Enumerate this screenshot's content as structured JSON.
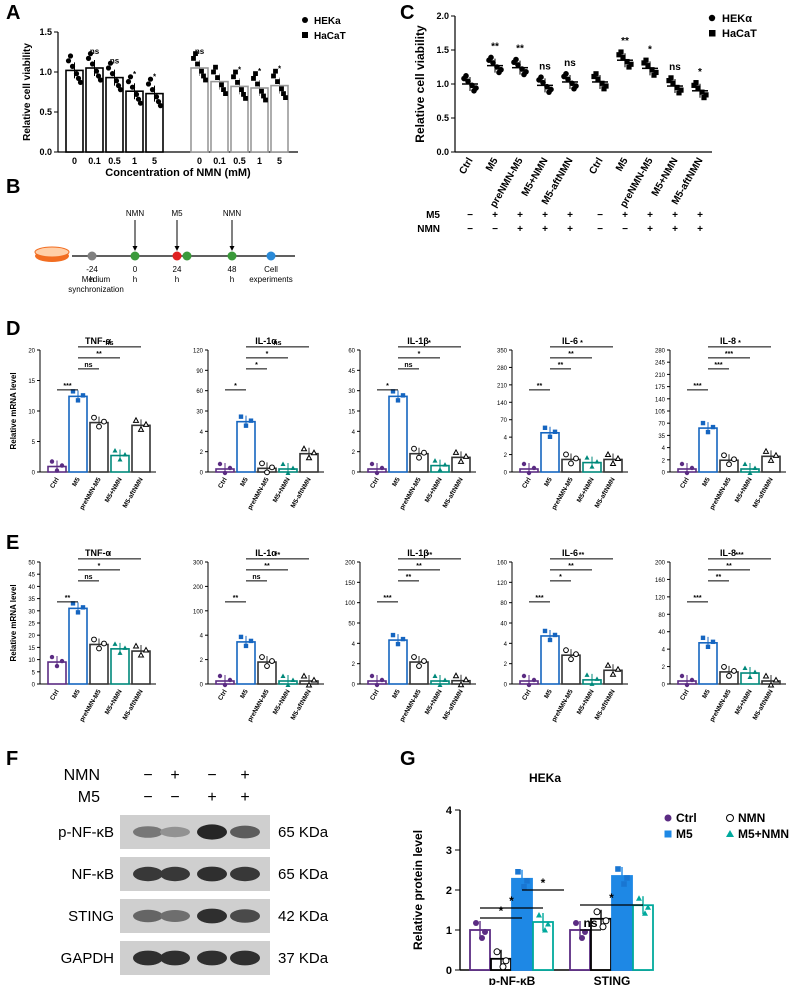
{
  "panels": {
    "A": "A",
    "B": "B",
    "C": "C",
    "D": "D",
    "E": "E",
    "F": "F",
    "G": "G"
  },
  "chart_data": [
    {
      "id": "A",
      "type": "bar",
      "ylabel": "Relative cell viability",
      "xlabel": "Concentration of NMN (mM)",
      "ylim": [
        0,
        1.5
      ],
      "yticks": [
        "0.0",
        "0.5",
        "1.0",
        "1.5"
      ],
      "legend": [
        "HEKa",
        "HaCaT"
      ],
      "groups": [
        {
          "name": "HEKa",
          "color": "#000000",
          "categories": [
            "0",
            "0.1",
            "0.5",
            "1",
            "5"
          ],
          "values": [
            1.02,
            1.05,
            0.93,
            0.76,
            0.73
          ],
          "sig": [
            "",
            "ns",
            "ns",
            "*",
            "*"
          ]
        },
        {
          "name": "HaCaT",
          "color": "#999999",
          "categories": [
            "0",
            "0.1",
            "0.5",
            "1",
            "5"
          ],
          "values": [
            1.05,
            0.88,
            0.82,
            0.8,
            0.83
          ],
          "sig": [
            "ns",
            "",
            "*",
            "*",
            "*"
          ]
        }
      ]
    },
    {
      "id": "C",
      "type": "scatter",
      "ylabel": "Relative cell viability",
      "ylim": [
        0,
        2.0
      ],
      "yticks": [
        "0.0",
        "0.5",
        "1.0",
        "1.5",
        "2.0"
      ],
      "legend": [
        "HEKα",
        "HaCaT"
      ],
      "categories": [
        "Ctrl",
        "M5",
        "preNMN-M5",
        "M5+NMN",
        "M5-aftNMN"
      ],
      "groups": [
        {
          "name": "HEKα",
          "means": [
            1.0,
            1.27,
            1.24,
            0.98,
            1.03
          ],
          "sig": [
            "",
            "**",
            "**",
            "ns",
            "ns"
          ]
        },
        {
          "name": "HaCaT",
          "means": [
            1.03,
            1.35,
            1.23,
            0.97,
            0.9
          ],
          "sig": [
            "",
            "**",
            "*",
            "ns",
            "*"
          ]
        }
      ],
      "condition_rows": [
        {
          "label": "M5",
          "marks": [
            "−",
            "+",
            "+",
            "+",
            "+"
          ]
        },
        {
          "label": "NMN",
          "marks": [
            "−",
            "−",
            "+",
            "+",
            "+"
          ]
        }
      ]
    },
    {
      "id": "B",
      "type": "table",
      "timeline": [
        {
          "top": "",
          "bottom": "-24 h",
          "sub": "Medium synchronization",
          "color": "#808080"
        },
        {
          "top": "NMN",
          "bottom": "0 h",
          "sub": "",
          "color": "#3a9a3a"
        },
        {
          "top": "M5",
          "bottom": "24 h",
          "sub": "",
          "color": "#e02020"
        },
        {
          "top": "",
          "bottom": "",
          "sub": "",
          "color": "#3a9a3a"
        },
        {
          "top": "NMN",
          "bottom": "48 h",
          "sub": "",
          "color": "#3a9a3a"
        },
        {
          "top": "",
          "bottom": "Cell experiments",
          "sub": "",
          "color": "#2a8ad8"
        }
      ]
    },
    {
      "id": "D",
      "type": "bar",
      "ylabel": "Relative mRNA level",
      "categories": [
        "Ctrl",
        "M5",
        "preNMN-M5",
        "M5+NMN",
        "M5-aftNMN"
      ],
      "colors": [
        "#5b2c83",
        "#1565c0",
        "#333333",
        "#00897b",
        "#333333"
      ],
      "subplots": [
        {
          "title": "TNF-α",
          "yticks": [
            "0",
            "5",
            "10",
            "15",
            "20"
          ],
          "ymax": 20,
          "values": [
            1,
            16,
            9,
            3,
            8.5
          ],
          "sig": [
            "***",
            "ns",
            "**",
            "ns"
          ]
        },
        {
          "title": "IL-1α",
          "yticks": [
            "0",
            "2",
            "4",
            "30",
            "60",
            "90",
            "120"
          ],
          "ymax": 120,
          "values": [
            1,
            55,
            4,
            2,
            20
          ],
          "sig": [
            "*",
            "*",
            "*",
            "ns"
          ]
        },
        {
          "title": "IL-1β",
          "yticks": [
            "0",
            "2",
            "4",
            "15",
            "30",
            "45",
            "60"
          ],
          "ymax": 60,
          "values": [
            1,
            45,
            10,
            3.5,
            8
          ],
          "sig": [
            "*",
            "ns",
            "*",
            "*"
          ]
        },
        {
          "title": "IL-6",
          "yticks": [
            "0",
            "2",
            "4",
            "70",
            "140",
            "210",
            "280",
            "350"
          ],
          "ymax": 350,
          "values": [
            1,
            125,
            40,
            30,
            40
          ],
          "sig": [
            "**",
            "**",
            "**",
            "*"
          ]
        },
        {
          "title": "IL-8",
          "yticks": [
            "0",
            "2",
            "4",
            "35",
            "70",
            "105",
            "140",
            "175",
            "210",
            "245",
            "280"
          ],
          "ymax": 280,
          "values": [
            1,
            112,
            30,
            3,
            40
          ],
          "sig": [
            "***",
            "***",
            "***",
            "*"
          ]
        }
      ]
    },
    {
      "id": "E",
      "type": "bar",
      "ylabel": "Relative mRNA level",
      "categories": [
        "Ctrl",
        "M5",
        "preNMN-M5",
        "M5+NMN",
        "M5-aftNMN"
      ],
      "colors": [
        "#5b2c83",
        "#1565c0",
        "#333333",
        "#00897b",
        "#333333"
      ],
      "subplots": [
        {
          "title": "TNF-α",
          "yticks": [
            "0",
            "5",
            "10",
            "15",
            "20",
            "25",
            "30",
            "35",
            "40",
            "45",
            "50"
          ],
          "ymax": 50,
          "values": [
            10,
            35,
            18,
            16,
            15
          ],
          "sig": [
            "**",
            "ns",
            "*",
            "*"
          ]
        },
        {
          "title": "IL-1α",
          "yticks": [
            "0",
            "2",
            "4",
            "100",
            "200",
            "300"
          ],
          "ymax": 300,
          "values": [
            1,
            115,
            60,
            3,
            4.5
          ],
          "sig": [
            "**",
            "ns",
            "**",
            "**"
          ]
        },
        {
          "title": "IL-1β",
          "yticks": [
            "0",
            "2",
            "4",
            "50",
            "100",
            "150",
            "200"
          ],
          "ymax": 200,
          "values": [
            1,
            80,
            40,
            4,
            6
          ],
          "sig": [
            "***",
            "**",
            "**",
            "**"
          ]
        },
        {
          "title": "IL-6",
          "yticks": [
            "0",
            "2",
            "4",
            "40",
            "80",
            "120",
            "160"
          ],
          "ymax": 160,
          "values": [
            1,
            70,
            42,
            6,
            20
          ],
          "sig": [
            "***",
            "*",
            "**",
            "**"
          ]
        },
        {
          "title": "IL-8",
          "yticks": [
            "0",
            "2",
            "4",
            "40",
            "80",
            "120",
            "160",
            "200"
          ],
          "ymax": 200,
          "values": [
            1,
            75,
            22,
            20,
            4
          ],
          "sig": [
            "***",
            "**",
            "**",
            "***"
          ]
        }
      ]
    },
    {
      "id": "G",
      "type": "bar",
      "title": "HEKa",
      "ylabel": "Relative protein level",
      "ylim": [
        0,
        4
      ],
      "yticks": [
        "0",
        "1",
        "2",
        "3",
        "4"
      ],
      "categories": [
        "p-NF-κB",
        "STING"
      ],
      "series": [
        {
          "name": "Ctrl",
          "color": "#5b2c83",
          "values": [
            1.0,
            1.0
          ]
        },
        {
          "name": "NMN",
          "color": "#000000",
          "values": [
            0.28,
            1.28
          ]
        },
        {
          "name": "M5",
          "color": "#1e88e5",
          "values": [
            2.28,
            2.35
          ]
        },
        {
          "name": "M5+NMN",
          "color": "#00a99d",
          "values": [
            1.2,
            1.62
          ]
        }
      ],
      "sig": [
        "*",
        "*",
        "*",
        "ns",
        "*"
      ]
    }
  ],
  "blot": {
    "header_rows": [
      {
        "label": "NMN",
        "marks": [
          "−",
          "+",
          "−",
          "+"
        ]
      },
      {
        "label": "M5",
        "marks": [
          "−",
          "−",
          "+",
          "+"
        ]
      }
    ],
    "bands": [
      {
        "label": "p-NF-κB",
        "size": "65 KDa",
        "intensity": [
          0.45,
          0.3,
          0.9,
          0.6
        ]
      },
      {
        "label": "NF-κB",
        "size": "65 KDa",
        "intensity": [
          0.8,
          0.8,
          0.85,
          0.8
        ]
      },
      {
        "label": "STING",
        "size": "42 KDa",
        "intensity": [
          0.55,
          0.5,
          0.85,
          0.7
        ]
      },
      {
        "label": "GAPDH",
        "size": "37 KDa",
        "intensity": [
          0.85,
          0.85,
          0.85,
          0.85
        ]
      }
    ]
  }
}
